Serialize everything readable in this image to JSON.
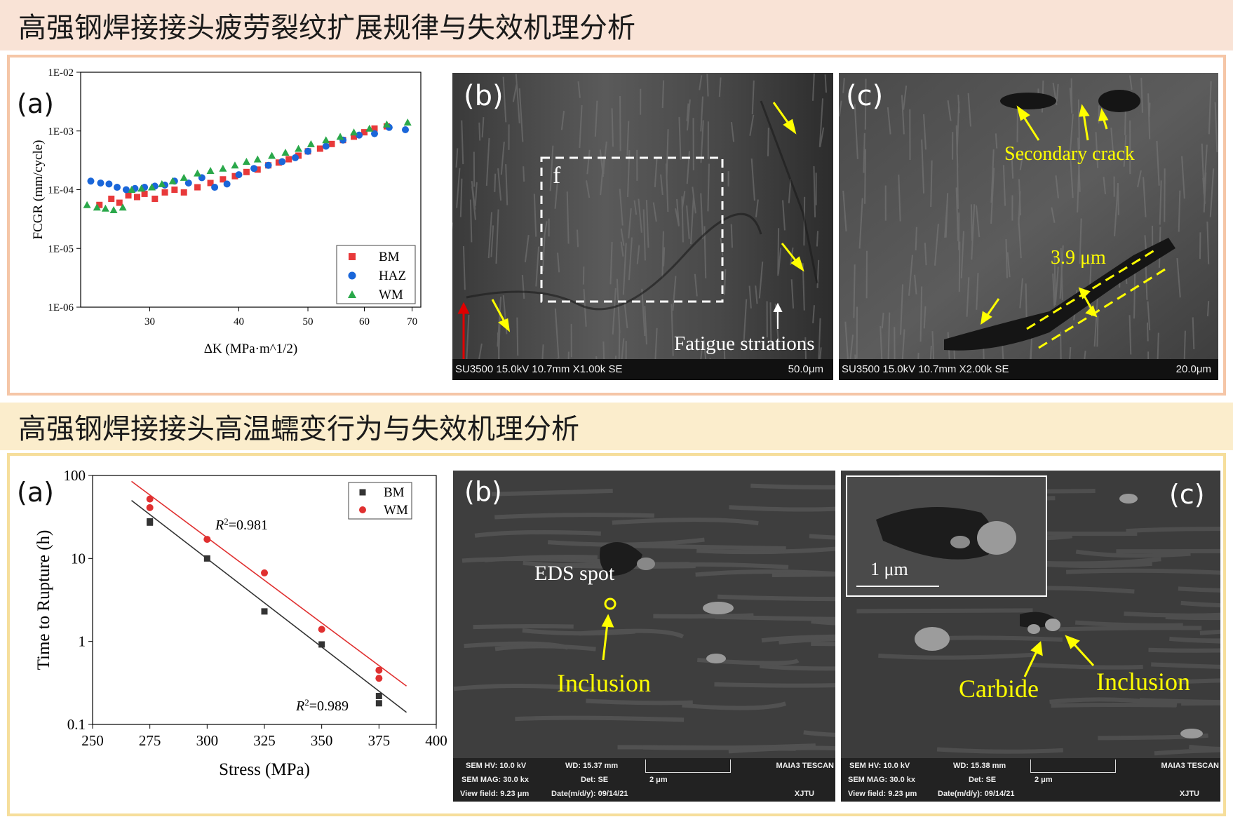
{
  "section1": {
    "title": "高强钢焊接接头疲劳裂纹扩展规律与失效机理分析",
    "panel_a_label": "(a)",
    "panel_b_label": "(b)",
    "panel_c_label": "(c)",
    "panel_b": {
      "region_label": "f",
      "annotation": "Fatigue striations",
      "info_left": "SU3500 15.0kV 10.7mm X1.00k SE",
      "info_right": "50.0μm"
    },
    "panel_c": {
      "annotation_crack": "Secondary crack",
      "annotation_width": "3.9 μm",
      "info_left": "SU3500 15.0kV 10.7mm X2.00k SE",
      "info_right": "20.0μm"
    }
  },
  "section2": {
    "title": "高强钢焊接接头高温蠕变行为与失效机理分析",
    "panel_a_label": "(a)",
    "panel_b_label": "(b)",
    "panel_c_label": "(c)",
    "panel_b": {
      "eds_label": "EDS spot",
      "inclusion_label": "Inclusion",
      "sem_hv": "SEM HV: 10.0 kV",
      "wd": "WD: 15.37 mm",
      "brand": "MAIA3 TESCAN",
      "sem_mag": "SEM MAG: 30.0 kx",
      "det": "Det: SE",
      "scale": "2 μm",
      "view_field": "View field: 9.23 μm",
      "date": "Date(m/d/y): 09/14/21",
      "org": "XJTU"
    },
    "panel_c": {
      "inset_scale": "1 μm",
      "carbide_label": "Carbide",
      "inclusion_label": "Inclusion",
      "sem_hv": "SEM HV: 10.0 kV",
      "wd": "WD: 15.38 mm",
      "brand": "MAIA3 TESCAN",
      "sem_mag": "SEM MAG: 30.0 kx",
      "det": "Det: SE",
      "scale": "2 μm",
      "view_field": "View field: 9.23 μm",
      "date": "Date(m/d/y): 09/14/21",
      "org": "XJTU"
    }
  },
  "colors": {
    "BM_fcgr": "#e8393a",
    "HAZ": "#1a66d9",
    "WM_fcgr": "#2aa84a",
    "BM_creep": "#333333",
    "WM_creep": "#e03030",
    "annotation": "#ffff00"
  },
  "chart_data": [
    {
      "type": "scatter",
      "xlabel": "ΔK (MPa·m^1/2)",
      "ylabel": "FCGR (mm/cycle)",
      "yscale": "log",
      "xscale": "log",
      "xlim": [
        24,
        72
      ],
      "ylim": [
        1e-06,
        0.01
      ],
      "xticks": [
        "30",
        "40",
        "50",
        "60",
        "70"
      ],
      "xtick_values": [
        30,
        40,
        50,
        60,
        70
      ],
      "yticks": [
        "1E-06",
        "1E-05",
        "1E-04",
        "1E-03",
        "1E-02"
      ],
      "ytick_values": [
        1e-06,
        1e-05,
        0.0001,
        0.001,
        0.01
      ],
      "legend_position": "bottom-right",
      "series": [
        {
          "name": "BM",
          "marker": "square",
          "color": "#e8393a",
          "x": [
            25.5,
            26.5,
            27.2,
            28,
            28.8,
            29.5,
            30.5,
            31.5,
            32.5,
            33.5,
            35,
            36.5,
            38,
            39.5,
            41,
            42.5,
            44,
            45.5,
            47,
            48.5,
            50,
            52,
            54,
            56,
            58,
            60,
            62,
            64.5
          ],
          "y": [
            5.5e-05,
            7e-05,
            6e-05,
            8e-05,
            7.5e-05,
            8.5e-05,
            7e-05,
            9e-05,
            0.0001,
            9e-05,
            0.00011,
            0.00013,
            0.00015,
            0.00017,
            0.0002,
            0.00022,
            0.00026,
            0.00029,
            0.00033,
            0.00038,
            0.00045,
            0.0005,
            0.0006,
            0.0007,
            0.0008,
            0.00095,
            0.0011,
            0.0012
          ]
        },
        {
          "name": "HAZ",
          "marker": "circle",
          "color": "#1a66d9",
          "x": [
            24.8,
            25.6,
            26.3,
            27,
            27.8,
            28.6,
            29.5,
            30.5,
            31.5,
            32.5,
            34,
            35.5,
            37,
            38.5,
            40,
            42,
            44,
            46,
            48,
            50,
            53,
            56,
            59,
            62,
            65,
            68.5
          ],
          "y": [
            0.00014,
            0.00013,
            0.000125,
            0.00011,
            0.0001,
            0.000105,
            0.00011,
            0.000115,
            0.00012,
            0.00014,
            0.00013,
            0.00016,
            0.00011,
            0.000125,
            0.00018,
            0.00023,
            0.00026,
            0.0003,
            0.00035,
            0.00045,
            0.00055,
            0.0007,
            0.00085,
            0.0009,
            0.00115,
            0.00105
          ]
        },
        {
          "name": "WM",
          "marker": "triangle",
          "color": "#2aa84a",
          "x": [
            24.5,
            25.3,
            26,
            26.7,
            27.5,
            28.3,
            29.2,
            30.2,
            31.2,
            32.3,
            33.5,
            35,
            36.5,
            38,
            39.5,
            41,
            42.5,
            44.5,
            46.5,
            48.5,
            50.5,
            53,
            55.5,
            58,
            61,
            64.5,
            69
          ],
          "y": [
            5.5e-05,
            5e-05,
            4.8e-05,
            4.5e-05,
            5e-05,
            0.0001,
            0.000105,
            0.00011,
            0.000125,
            0.00014,
            0.00016,
            0.00019,
            0.00021,
            0.00023,
            0.00026,
            0.0003,
            0.00033,
            0.00038,
            0.00043,
            0.0005,
            0.0006,
            0.0007,
            0.0008,
            0.00095,
            0.0011,
            0.0013,
            0.0014
          ]
        }
      ]
    },
    {
      "type": "scatter",
      "xlabel": "Stress (MPa)",
      "ylabel": "Time to Rupture (h)",
      "yscale": "log",
      "xlim": [
        250,
        400
      ],
      "ylim": [
        0.1,
        100
      ],
      "xticks": [
        "250",
        "275",
        "300",
        "325",
        "350",
        "375",
        "400"
      ],
      "xtick_values": [
        250,
        275,
        300,
        325,
        350,
        375,
        400
      ],
      "yticks": [
        "0.1",
        "1",
        "10",
        "100"
      ],
      "ytick_values": [
        0.1,
        1,
        10,
        100
      ],
      "legend_position": "top-right",
      "series": [
        {
          "name": "BM",
          "marker": "square",
          "color": "#333333",
          "x": [
            275,
            275,
            300,
            325,
            350,
            375,
            375
          ],
          "y": [
            28,
            27,
            10,
            2.3,
            0.92,
            0.22,
            0.18
          ],
          "fit": {
            "x": [
              267,
              387
            ],
            "y": [
              50,
              0.14
            ]
          },
          "r2_label": "0.989"
        },
        {
          "name": "WM",
          "marker": "circle",
          "color": "#e03030",
          "x": [
            275,
            275,
            300,
            325,
            350,
            375,
            375
          ],
          "y": [
            52,
            41,
            17,
            6.7,
            1.4,
            0.45,
            0.36
          ],
          "fit": {
            "x": [
              267,
              387
            ],
            "y": [
              85,
              0.29
            ]
          },
          "r2_label": "0.981"
        }
      ]
    }
  ]
}
